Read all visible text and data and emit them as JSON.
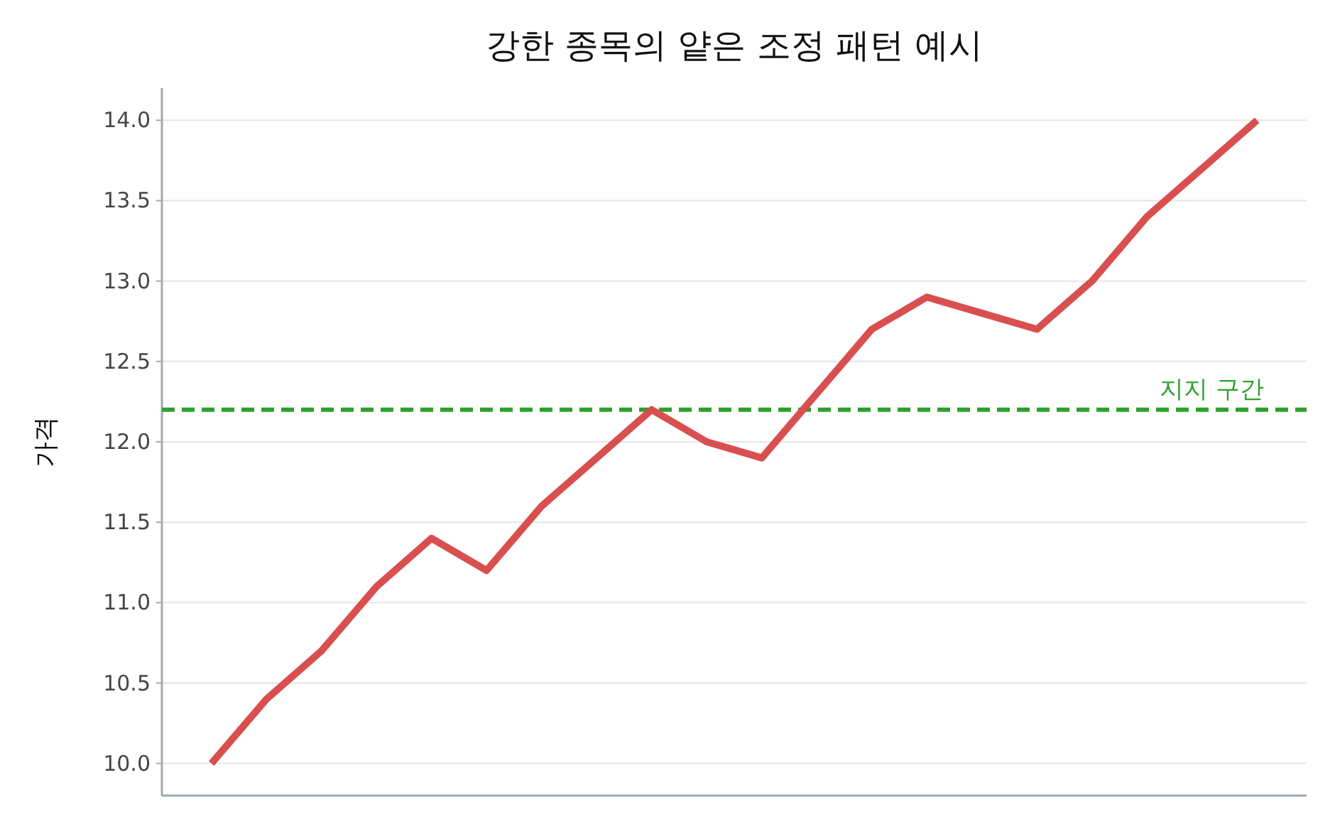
{
  "chart_data": {
    "type": "line",
    "title": "강한 종목의 얕은 조정 패턴 예시",
    "ylabel": "가격",
    "categories": [
      null,
      null,
      null,
      null,
      null,
      null,
      null,
      null,
      null,
      null,
      null,
      null,
      null,
      null,
      null,
      null,
      null,
      null,
      null,
      null
    ],
    "series": [
      {
        "color": "#d94f4f",
        "values": [
          10.0,
          10.4,
          10.7,
          11.1,
          11.4,
          11.2,
          11.6,
          11.9,
          12.2,
          12.0,
          11.9,
          12.3,
          12.7,
          12.9,
          12.8,
          12.7,
          13.0,
          13.4,
          13.7,
          14.0
        ]
      }
    ],
    "ylim": [
      9.8,
      14.2
    ],
    "yticks": [
      {
        "value": 10,
        "label": "10.0"
      },
      {
        "value": 10.5,
        "label": "10.5"
      },
      {
        "value": 11,
        "label": "11.0"
      },
      {
        "value": 11.5,
        "label": "11.5"
      },
      {
        "value": 12,
        "label": "12.0"
      },
      {
        "value": 12.5,
        "label": "12.5"
      },
      {
        "value": 13,
        "label": "13.0"
      },
      {
        "value": 13.5,
        "label": "13.5"
      },
      {
        "value": 14,
        "label": "14.0"
      }
    ],
    "grid": "y",
    "line_style": "solid",
    "marker": "none",
    "ref_lines": [
      {
        "axis": "y",
        "value": 12.2,
        "label": "지지 구간",
        "color": "#2ca02c",
        "line_style": "dashed"
      }
    ]
  }
}
